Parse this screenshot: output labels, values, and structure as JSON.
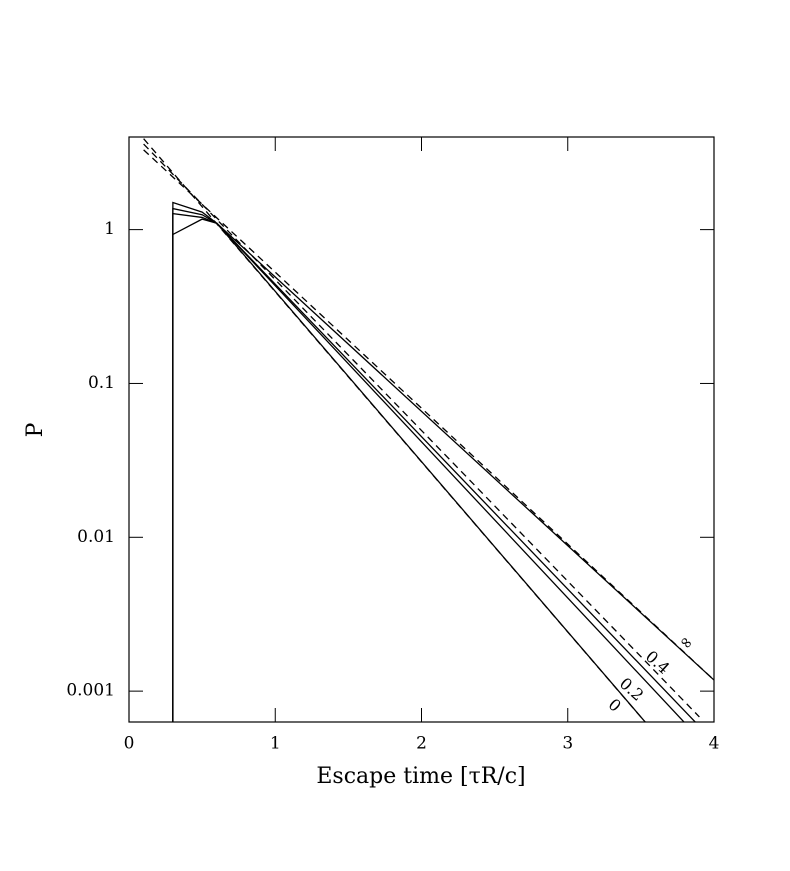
{
  "chart_data": {
    "type": "line",
    "xlabel": "Escape time [τR/c]",
    "ylabel": "P",
    "xlim": [
      0,
      4
    ],
    "ylim": [
      0.00063,
      4
    ],
    "yscale": "log",
    "xticks": [
      0,
      1,
      2,
      3,
      4
    ],
    "yticks": [
      0.001,
      0.01,
      0.1,
      1
    ],
    "color": "#000000",
    "series": [
      {
        "style": "solid",
        "x": [
          0.3,
          0.3,
          0.5,
          0.6,
          4
        ],
        "values": [
          0.00063,
          1.5,
          1.3,
          1.1,
          0.00118
        ]
      },
      {
        "style": "solid",
        "x": [
          0.3,
          0.3,
          0.5,
          0.6,
          4
        ],
        "values": [
          0.00063,
          1.37,
          1.25,
          1.1,
          0.00047
        ]
      },
      {
        "style": "solid",
        "x": [
          0.3,
          0.3,
          0.5,
          0.6,
          4
        ],
        "values": [
          0.00063,
          1.27,
          1.2,
          1.1,
          0.00039
        ]
      },
      {
        "style": "solid",
        "x": [
          0.3,
          0.3,
          0.5,
          0.6,
          4
        ],
        "values": [
          0.00063,
          0.93,
          1.17,
          1.1,
          0.00019
        ]
      },
      {
        "style": "dashed",
        "x": [
          0.1,
          4
        ],
        "values": [
          3.3,
          0.00118
        ]
      },
      {
        "style": "dashed",
        "x": [
          0.1,
          3.9
        ],
        "values": [
          3.6,
          0.00068
        ]
      },
      {
        "style": "dashed",
        "x": [
          0.1,
          4
        ],
        "values": [
          3.9,
          0.00019
        ]
      }
    ],
    "annotations": [
      "∞",
      "0.4",
      "0.2",
      "0"
    ]
  }
}
